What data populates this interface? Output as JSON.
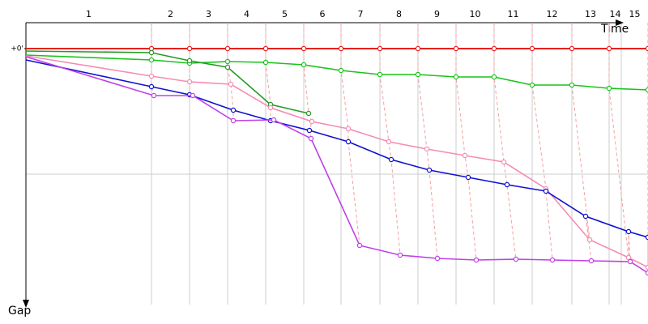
{
  "chart_data": {
    "type": "line",
    "x_label": "Time",
    "y_label": "Gap",
    "xlim": [
      0,
      768
    ],
    "ylim": [
      0,
      310
    ],
    "yticks": [
      {
        "value": 0,
        "label": "+0'"
      }
    ],
    "ygrid": [
      155
    ],
    "lap_labels": [
      "1",
      "2",
      "3",
      "4",
      "5",
      "6",
      "7",
      "8",
      "9",
      "10",
      "11",
      "12",
      "13",
      "14",
      "15"
    ],
    "lap_lines": [
      155,
      202,
      249,
      296,
      343,
      389,
      437,
      484,
      531,
      578,
      625,
      674,
      720,
      735
    ],
    "series": [
      {
        "color": "#e8201c",
        "x": [
          0,
          155,
          202,
          249,
          296,
          343,
          389,
          437,
          484,
          531,
          578,
          625,
          674,
          720,
          768
        ],
        "values": [
          0,
          0,
          0,
          0,
          0,
          0,
          0,
          0,
          0,
          0,
          0,
          0,
          0,
          0,
          0
        ]
      },
      {
        "color": "#19c419",
        "x": [
          0,
          155,
          202,
          249,
          296,
          343,
          389,
          437,
          484,
          531,
          578,
          625,
          674,
          720,
          768
        ],
        "values": [
          8,
          14,
          18,
          16,
          17,
          20,
          27,
          32,
          32,
          35,
          35,
          45,
          45,
          49,
          51
        ]
      },
      {
        "color": "#259b25",
        "x": [
          0,
          155,
          202,
          249,
          302,
          349
        ],
        "values": [
          3,
          5,
          15,
          23,
          69,
          80
        ]
      },
      {
        "color": "#f58cb4",
        "x": [
          0,
          155,
          202,
          253,
          302,
          353,
          398,
          448,
          495,
          542,
          590,
          642,
          696,
          744,
          768
        ],
        "values": [
          9,
          34,
          41,
          44,
          73,
          90,
          99,
          115,
          124,
          132,
          140,
          173,
          236,
          258,
          270
        ]
      },
      {
        "color": "#1010d0",
        "x": [
          0,
          155,
          202,
          256,
          302,
          350,
          398,
          451,
          498,
          546,
          594,
          642,
          691,
          744,
          768
        ],
        "values": [
          14,
          47,
          57,
          76,
          89,
          101,
          115,
          137,
          150,
          159,
          168,
          176,
          207,
          226,
          233
        ]
      },
      {
        "color": "#c040e8",
        "x": [
          0,
          158,
          206,
          256,
          306,
          352,
          412,
          462,
          508,
          556,
          605,
          650,
          698,
          746,
          768
        ],
        "values": [
          10,
          58,
          58,
          89,
          88,
          111,
          243,
          255,
          259,
          261,
          260,
          261,
          262,
          263,
          277
        ]
      }
    ]
  }
}
